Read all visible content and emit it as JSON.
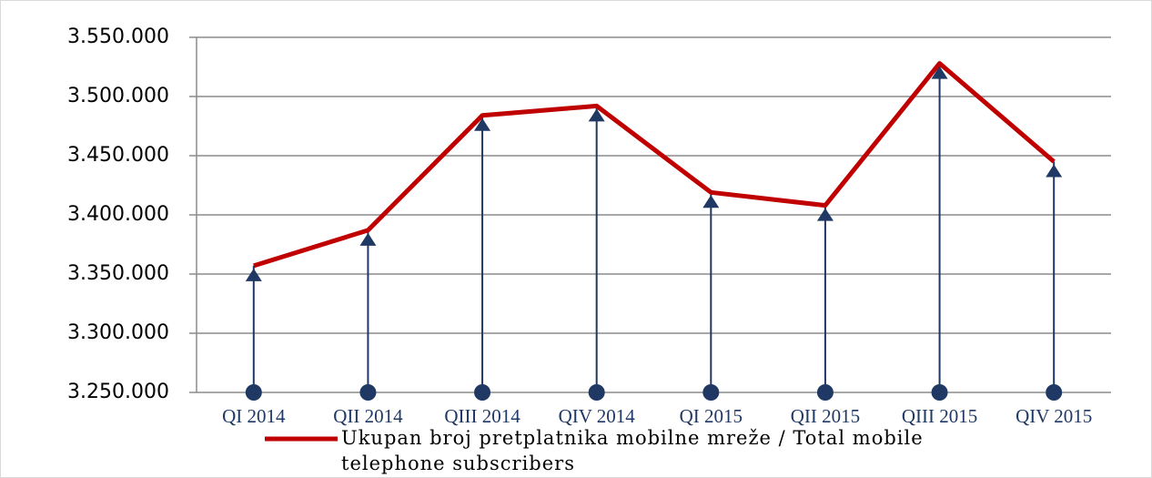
{
  "chart_data": {
    "type": "line",
    "categories": [
      "QI 2014",
      "QII 2014",
      "QIII 2014",
      "QIV 2014",
      "QI 2015",
      "QII 2015",
      "QIII 2015",
      "QIV 2015"
    ],
    "series": [
      {
        "name": "Ukupan broj pretplatnika mobilne mreže / Total mobile telephone subscribers",
        "color": "#c00000",
        "values": [
          3357000,
          3387000,
          3484000,
          3492000,
          3419000,
          3408000,
          3528000,
          3445000
        ]
      }
    ],
    "ylim": [
      3250000,
      3550000
    ],
    "yticks": [
      {
        "value": 3250000,
        "label": "3.250.000"
      },
      {
        "value": 3300000,
        "label": "3.300.000"
      },
      {
        "value": 3350000,
        "label": "3.350.000"
      },
      {
        "value": 3400000,
        "label": "3.400.000"
      },
      {
        "value": 3450000,
        "label": "3.450.000"
      },
      {
        "value": 3500000,
        "label": "3.500.000"
      },
      {
        "value": 3550000,
        "label": "3.550.000"
      }
    ],
    "grid": true,
    "drop_line_color": "#1f3864",
    "legend": "bottom"
  }
}
